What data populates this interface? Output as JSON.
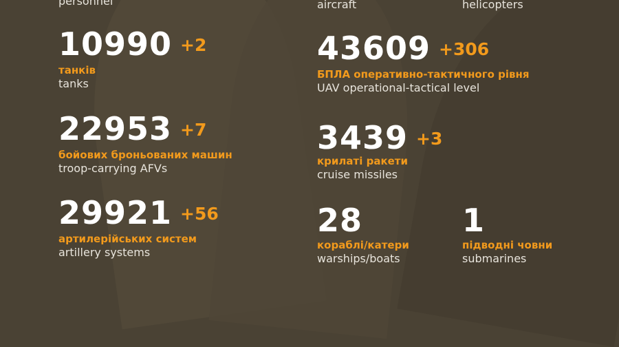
{
  "colors": {
    "background": "#4a4234",
    "accent": "#f29a1c",
    "text": "#ffffff"
  },
  "top_labels": [
    {
      "en": "personnel"
    },
    {
      "en": "aircraft"
    },
    {
      "en": "helicopters"
    }
  ],
  "stats": [
    {
      "value": "10990",
      "delta": "+2",
      "ua": "танків",
      "en": "tanks"
    },
    {
      "value": "22953",
      "delta": "+7",
      "ua": "бойових броньованих машин",
      "en": "troop-carrying AFVs"
    },
    {
      "value": "29921",
      "delta": "+56",
      "ua": "артилерійських систем",
      "en": "artillery systems"
    },
    {
      "value": "43609",
      "delta": "+306",
      "ua": "БПЛА оперативно-тактичного рівня",
      "en": "UAV operational-tactical level"
    },
    {
      "value": "3439",
      "delta": "+3",
      "ua": "крилаті ракети",
      "en": "cruise missiles"
    },
    {
      "value": "28",
      "delta": "",
      "ua": "кораблі/катери",
      "en": "warships/boats"
    },
    {
      "value": "1",
      "delta": "",
      "ua": "підводні човни",
      "en": "submarines"
    }
  ]
}
